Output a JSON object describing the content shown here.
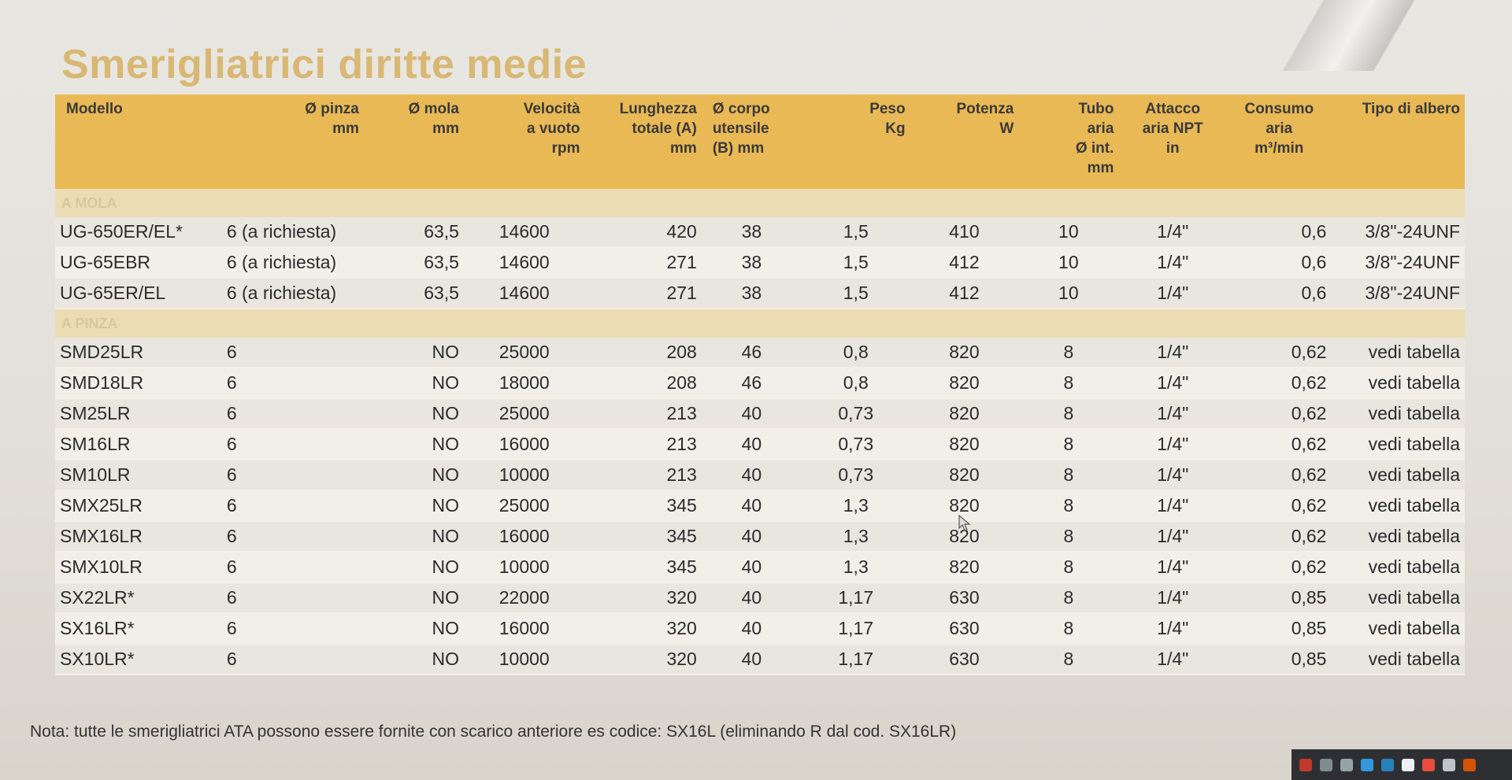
{
  "title": "Smerigliatrici diritte medie",
  "columns": [
    {
      "line1": "Modello",
      "line2": "",
      "line3": "",
      "line4": ""
    },
    {
      "line1": "Ø pinza",
      "line2": "mm",
      "line3": "",
      "line4": ""
    },
    {
      "line1": "Ø mola",
      "line2": "mm",
      "line3": "",
      "line4": ""
    },
    {
      "line1": "Velocità",
      "line2": "a vuoto",
      "line3": "rpm",
      "line4": ""
    },
    {
      "line1": "Lunghezza",
      "line2": "totale (A)",
      "line3": "mm",
      "line4": ""
    },
    {
      "line1": "Ø corpo",
      "line2": "utensile",
      "line3": "(B) mm",
      "line4": ""
    },
    {
      "line1": "Peso",
      "line2": "Kg",
      "line3": "",
      "line4": ""
    },
    {
      "line1": "Potenza",
      "line2": "W",
      "line3": "",
      "line4": ""
    },
    {
      "line1": "Tubo",
      "line2": "aria",
      "line3": "Ø int.",
      "line4": "mm"
    },
    {
      "line1": "Attacco",
      "line2": "aria NPT",
      "line3": "in",
      "line4": ""
    },
    {
      "line1": "Consumo",
      "line2": "aria",
      "line3": "m³/min",
      "line4": ""
    },
    {
      "line1": "Tipo di albero",
      "line2": "",
      "line3": "",
      "line4": ""
    }
  ],
  "sections": [
    {
      "label": "A MOLA",
      "rows": [
        [
          "UG-650ER/EL*",
          "6 (a richiesta)",
          "63,5",
          "14600",
          "420",
          "38",
          "1,5",
          "410",
          "10",
          "1/4\"",
          "0,6",
          "3/8\"-24UNF"
        ],
        [
          "UG-65EBR",
          "6 (a richiesta)",
          "63,5",
          "14600",
          "271",
          "38",
          "1,5",
          "412",
          "10",
          "1/4\"",
          "0,6",
          "3/8\"-24UNF"
        ],
        [
          "UG-65ER/EL",
          "6 (a richiesta)",
          "63,5",
          "14600",
          "271",
          "38",
          "1,5",
          "412",
          "10",
          "1/4\"",
          "0,6",
          "3/8\"-24UNF"
        ]
      ]
    },
    {
      "label": "A PINZA",
      "rows": [
        [
          "SMD25LR",
          "6",
          "NO",
          "25000",
          "208",
          "46",
          "0,8",
          "820",
          "8",
          "1/4\"",
          "0,62",
          "vedi tabella"
        ],
        [
          "SMD18LR",
          "6",
          "NO",
          "18000",
          "208",
          "46",
          "0,8",
          "820",
          "8",
          "1/4\"",
          "0,62",
          "vedi tabella"
        ],
        [
          "SM25LR",
          "6",
          "NO",
          "25000",
          "213",
          "40",
          "0,73",
          "820",
          "8",
          "1/4\"",
          "0,62",
          "vedi tabella"
        ],
        [
          "SM16LR",
          "6",
          "NO",
          "16000",
          "213",
          "40",
          "0,73",
          "820",
          "8",
          "1/4\"",
          "0,62",
          "vedi tabella"
        ],
        [
          "SM10LR",
          "6",
          "NO",
          "10000",
          "213",
          "40",
          "0,73",
          "820",
          "8",
          "1/4\"",
          "0,62",
          "vedi tabella"
        ],
        [
          "SMX25LR",
          "6",
          "NO",
          "25000",
          "345",
          "40",
          "1,3",
          "820",
          "8",
          "1/4\"",
          "0,62",
          "vedi tabella"
        ],
        [
          "SMX16LR",
          "6",
          "NO",
          "16000",
          "345",
          "40",
          "1,3",
          "820",
          "8",
          "1/4\"",
          "0,62",
          "vedi tabella"
        ],
        [
          "SMX10LR",
          "6",
          "NO",
          "10000",
          "345",
          "40",
          "1,3",
          "820",
          "8",
          "1/4\"",
          "0,62",
          "vedi tabella"
        ],
        [
          "SX22LR*",
          "6",
          "NO",
          "22000",
          "320",
          "40",
          "1,17",
          "630",
          "8",
          "1/4\"",
          "0,85",
          "vedi tabella"
        ],
        [
          "SX16LR*",
          "6",
          "NO",
          "16000",
          "320",
          "40",
          "1,17",
          "630",
          "8",
          "1/4\"",
          "0,85",
          "vedi tabella"
        ],
        [
          "SX10LR*",
          "6",
          "NO",
          "10000",
          "320",
          "40",
          "1,17",
          "630",
          "8",
          "1/4\"",
          "0,85",
          "vedi tabella"
        ]
      ]
    }
  ],
  "note": "Nota: tutte le smerigliatrici ATA possono essere fornite con scarico anteriore es codice: SX16L (eliminando R dal cod. SX16LR)",
  "colors": {
    "header_bg": "#e9b955",
    "title": "#d8b874",
    "section_bg": "#ecdcb4"
  },
  "taskbar_icons": [
    "acrobat-icon",
    "printer-icon",
    "network-icon",
    "app-icon",
    "app-icon",
    "app-icon",
    "app-icon",
    "app-icon",
    "app-icon"
  ]
}
